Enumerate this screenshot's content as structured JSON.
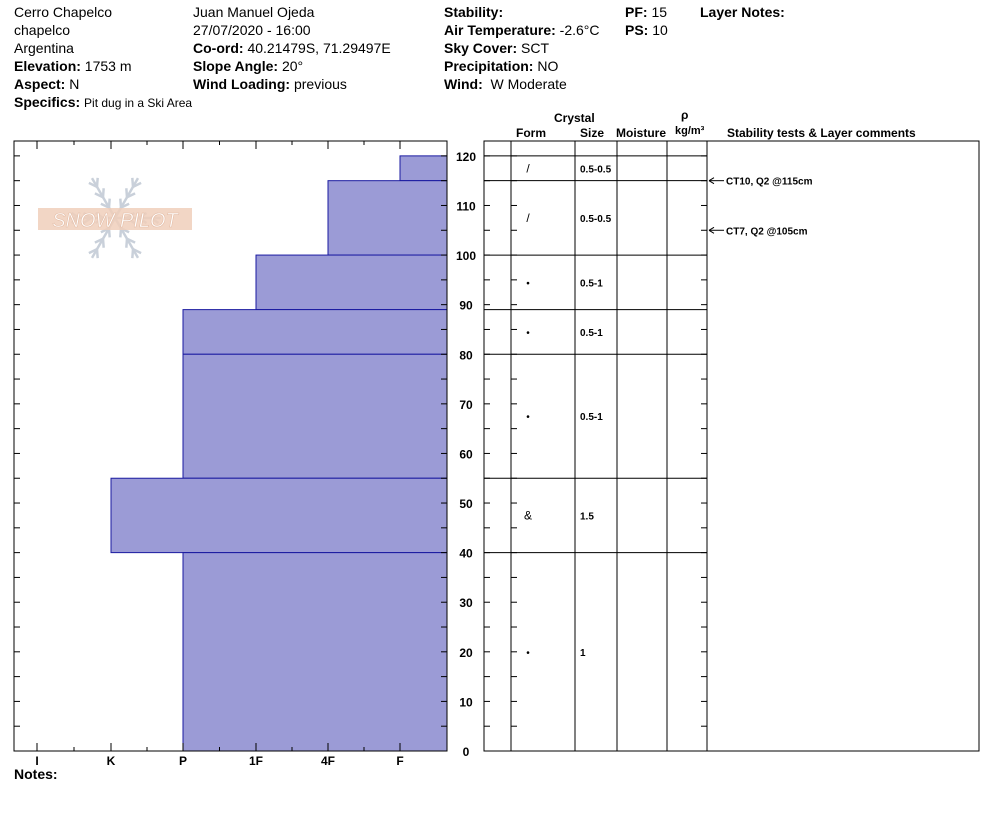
{
  "header": {
    "location": "Cerro Chapelco",
    "sublocation": "chapelco",
    "country": "Argentina",
    "elevation_label": "Elevation:",
    "elevation_value": "1753 m",
    "aspect_label": "Aspect:",
    "aspect_value": "N",
    "specifics_label": "Specifics:",
    "specifics_value": "Pit dug in a Ski Area",
    "observer": "Juan Manuel Ojeda",
    "datetime": "27/07/2020 - 16:00",
    "coord_label": "Co-ord:",
    "coord_value": "40.21479S, 71.29497E",
    "slope_label": "Slope Angle:",
    "slope_value": "20°",
    "wind_loading_label": "Wind Loading:",
    "wind_loading_value": "previous",
    "stability_label": "Stability:",
    "air_temp_label": "Air Temperature:",
    "air_temp_value": "-2.6°C",
    "sky_label": "Sky Cover:",
    "sky_value": "SCT",
    "precip_label": "Precipitation:",
    "precip_value": "NO",
    "wind_label": "Wind:",
    "wind_value": "W Moderate",
    "pf_label": "PF:",
    "pf_value": "15",
    "ps_label": "PS:",
    "ps_value": "10",
    "layer_notes_label": "Layer Notes:"
  },
  "logo_text": "SNOW PILOT",
  "notes_label": "Notes:",
  "columns": {
    "crystal": "Crystal",
    "form": "Form",
    "size": "Size",
    "moisture": "Moisture",
    "rho": "ρ",
    "density_unit": "kg/m³",
    "comments": "Stability tests & Layer comments"
  },
  "chart_data": {
    "type": "bar",
    "orientation": "horizontal-profile",
    "y_axis": {
      "range": [
        0,
        120
      ],
      "ticks": [
        0,
        10,
        20,
        30,
        40,
        50,
        60,
        70,
        80,
        90,
        100,
        110,
        120
      ],
      "unit": "cm"
    },
    "x_axis": {
      "categories": [
        "I",
        "K",
        "P",
        "1F",
        "4F",
        "F"
      ]
    },
    "bar_color": "#9b9bd6",
    "layers": [
      {
        "top": 120,
        "bottom": 115,
        "hardness": "F",
        "form": "/",
        "size": "0.5-0.5"
      },
      {
        "top": 115,
        "bottom": 100,
        "hardness": "4F",
        "form": "/",
        "size": "0.5-0.5"
      },
      {
        "top": 100,
        "bottom": 89,
        "hardness": "1F",
        "form": "•",
        "size": "0.5-1"
      },
      {
        "top": 89,
        "bottom": 80,
        "hardness": "P",
        "form": "•",
        "size": "0.5-1"
      },
      {
        "top": 80,
        "bottom": 55,
        "hardness": "P",
        "form": "•",
        "size": "0.5-1"
      },
      {
        "top": 55,
        "bottom": 40,
        "hardness": "K",
        "form": "&",
        "size": "1.5"
      },
      {
        "top": 40,
        "bottom": 0,
        "hardness": "P",
        "form": "•",
        "size": "1"
      }
    ],
    "tests": [
      {
        "depth": 115,
        "text": "CT10, Q2 @115cm"
      },
      {
        "depth": 105,
        "text": "CT7, Q2 @105cm"
      }
    ]
  }
}
